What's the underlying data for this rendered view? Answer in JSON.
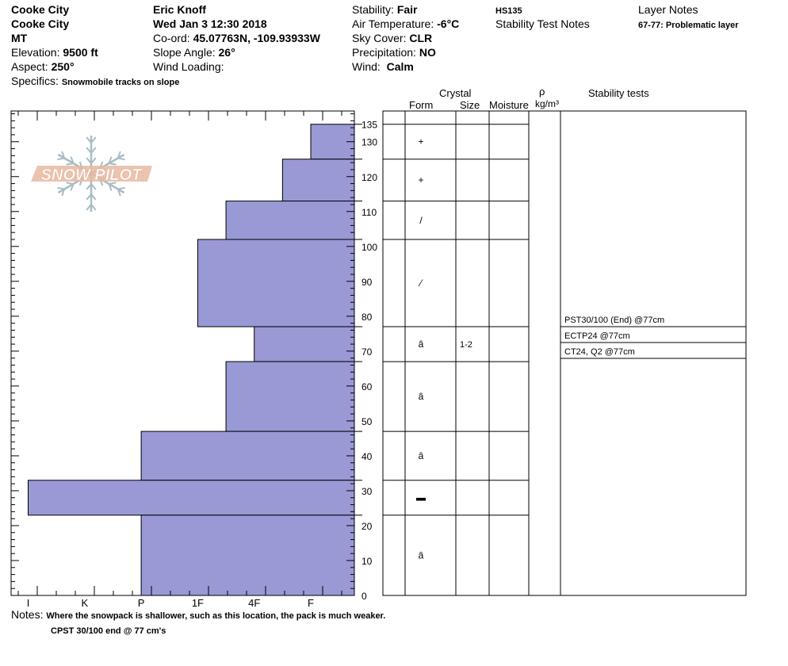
{
  "header": {
    "location_line1": "Cooke City",
    "location_line2": "Cooke City",
    "state": "MT",
    "elevation_label": "Elevation:",
    "elevation_value": "9500 ft",
    "aspect_label": "Aspect:",
    "aspect_value": "250°",
    "specifics_label": "Specifics:",
    "specifics_value": "Snowmobile tracks on slope",
    "observer": "Eric Knoff",
    "datetime": "Wed Jan 3 12:30 2018",
    "coord_label": "Co-ord:",
    "coord_value": "45.07763N, -109.93933W",
    "slope_label": "Slope Angle:",
    "slope_value": "26°",
    "wind_loading_label": "Wind Loading:",
    "wind_loading_value": "",
    "stability_label": "Stability:",
    "stability_value": "Fair",
    "air_temp_label": "Air Temperature:",
    "air_temp_value": "-6°C",
    "sky_label": "Sky Cover:",
    "sky_value": "CLR",
    "precip_label": "Precipitation:",
    "precip_value": "NO",
    "wind_label": "Wind:",
    "wind_value": "Calm",
    "hs": "HS135",
    "stability_test_notes": "Stability Test Notes",
    "layer_notes_title": "Layer Notes",
    "layer_note": "67-77: Problematic layer"
  },
  "logo": {
    "text": "SNOW PILOT"
  },
  "table_headers": {
    "crystal": "Crystal",
    "form": "Form",
    "size": "Size",
    "moisture": "Moisture",
    "rho": "ρ",
    "density_unit": "kg/m³",
    "stability_tests": "Stability tests"
  },
  "notes": {
    "label": "Notes:",
    "line1": "Where the snowpack is shallower, such as this location, the pack is much weaker.",
    "line2": "CPST 30/100 end @ 77 cm's"
  },
  "colors": {
    "hardness_fill": "#9999d6",
    "line": "#000000",
    "logo": "#e8b8a0",
    "flake": "#a9bcc6"
  },
  "chart_data": {
    "type": "bar",
    "orientation": "horizontal",
    "title": "",
    "xlabel": "",
    "ylabel": "",
    "height_range_cm": [
      0,
      135
    ],
    "height_ticks": [
      0,
      10,
      20,
      30,
      40,
      50,
      60,
      70,
      80,
      90,
      100,
      110,
      120,
      130,
      135
    ],
    "hardness_scale": [
      "I",
      "K",
      "P",
      "1F",
      "4F",
      "F"
    ],
    "hardness_scale_note": "hardness scale from I (left, hardest) to F (right, softest); values as index 0-6 where 6 = right edge",
    "layers": [
      {
        "bottom": 125,
        "top": 135,
        "hardness_index": 5.0
      },
      {
        "bottom": 113,
        "top": 125,
        "hardness_index": 4.5
      },
      {
        "bottom": 102,
        "top": 113,
        "hardness_index": 3.5
      },
      {
        "bottom": 77,
        "top": 102,
        "hardness_index": 3.0
      },
      {
        "bottom": 67,
        "top": 77,
        "hardness_index": 4.0
      },
      {
        "bottom": 47,
        "top": 67,
        "hardness_index": 3.5
      },
      {
        "bottom": 33,
        "top": 47,
        "hardness_index": 2.0
      },
      {
        "bottom": 23,
        "top": 33,
        "hardness_index": 0.0
      },
      {
        "bottom": 0,
        "top": 23,
        "hardness_index": 2.0
      }
    ],
    "crystal_layers": [
      {
        "bottom": 125,
        "top": 135,
        "form": "+",
        "size": ""
      },
      {
        "bottom": 113,
        "top": 125,
        "form": "+",
        "size": ""
      },
      {
        "bottom": 102,
        "top": 113,
        "form": "/",
        "size": ""
      },
      {
        "bottom": 77,
        "top": 102,
        "form": "⁄",
        "size": ""
      },
      {
        "bottom": 67,
        "top": 77,
        "form": "ȃ",
        "size": "1-2"
      },
      {
        "bottom": 47,
        "top": 67,
        "form": "ȃ",
        "size": ""
      },
      {
        "bottom": 33,
        "top": 47,
        "form": "ȃ",
        "size": ""
      },
      {
        "bottom": 23,
        "top": 33,
        "form": "▬",
        "size": ""
      },
      {
        "bottom": 0,
        "top": 23,
        "form": "ȃ",
        "size": ""
      }
    ],
    "stability_tests": [
      {
        "label": "PST30/100 (End) @77cm",
        "height": 77
      },
      {
        "label": "ECTP24 @77cm",
        "height": 77
      },
      {
        "label": "CT24, Q2 @77cm",
        "height": 77
      }
    ]
  }
}
